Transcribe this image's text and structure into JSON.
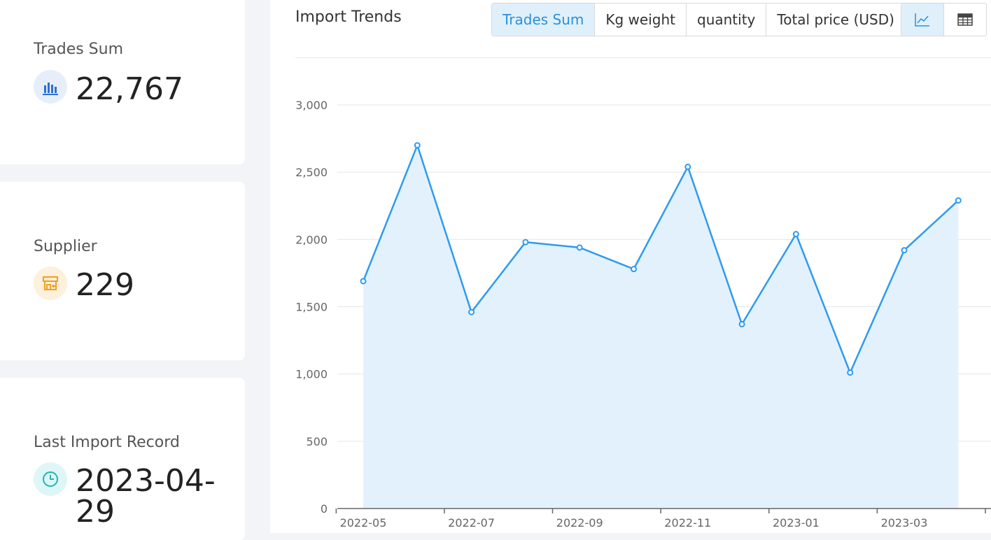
{
  "stats": {
    "trades": {
      "label": "Trades Sum",
      "value": "22,767",
      "icon": "bar-chart-icon",
      "color": "#2b6fd6"
    },
    "supplier": {
      "label": "Supplier",
      "value": "229",
      "icon": "store-icon",
      "color": "#f0a020"
    },
    "last_record": {
      "label": "Last Import Record",
      "value": "2023-04-29",
      "icon": "clock-icon",
      "color": "#1fb5b5"
    }
  },
  "chart_panel": {
    "title": "Import Trends",
    "tabs": [
      {
        "label": "Trades Sum",
        "active": true
      },
      {
        "label": "Kg weight",
        "active": false
      },
      {
        "label": "quantity",
        "active": false
      },
      {
        "label": "Total price (USD)",
        "active": false
      }
    ],
    "view_buttons": [
      {
        "icon": "line-chart-icon",
        "active": true
      },
      {
        "icon": "table-icon",
        "active": false
      }
    ]
  },
  "chart_data": {
    "type": "area",
    "x": [
      "2022-05",
      "2022-06",
      "2022-07",
      "2022-08",
      "2022-09",
      "2022-10",
      "2022-11",
      "2022-12",
      "2023-01",
      "2023-02",
      "2023-03",
      "2023-04"
    ],
    "y": [
      1690,
      2700,
      1460,
      1980,
      1940,
      1780,
      2540,
      1370,
      2040,
      1010,
      1920,
      2290
    ],
    "x_tick_labels": [
      "2022-05",
      "2022-07",
      "2022-09",
      "2022-11",
      "2023-01",
      "2023-03"
    ],
    "y_ticks": [
      0,
      500,
      1000,
      1500,
      2000,
      2500,
      3000
    ],
    "y_tick_labels": [
      "0",
      "500",
      "1,000",
      "1,500",
      "2,000",
      "2,500",
      "3,000"
    ],
    "ylim": [
      0,
      3000
    ],
    "grid": true,
    "line_color": "#2e9bf0",
    "fill_color": "#e3f1fd"
  }
}
